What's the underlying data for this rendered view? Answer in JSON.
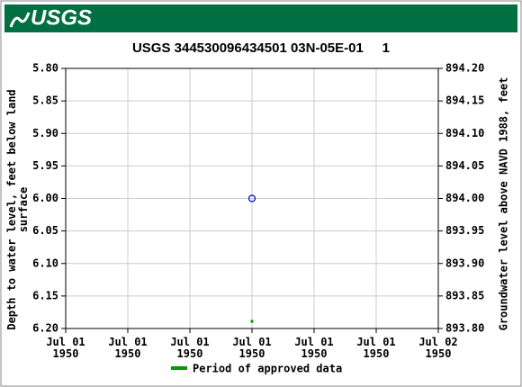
{
  "header": {
    "logo": "USGS"
  },
  "chart_data": {
    "type": "scatter",
    "title": "USGS 344530096434501 03N-05E-01     1",
    "ylabel": "Depth to water level, feet below land\nsurface",
    "y2label": "Groundwater level above NAVD 1988, feet",
    "x": [
      12
    ],
    "series": [
      {
        "color": "#0000cc",
        "values": [
          6.0
        ]
      }
    ],
    "approved": {
      "name": "Period of approved data",
      "color": "#009900",
      "x": [
        12
      ]
    },
    "xlim": [
      0,
      24
    ],
    "xticks": [
      {
        "value": 0,
        "label": "Jul 01\n1950"
      },
      {
        "value": 4,
        "label": "Jul 01\n1950"
      },
      {
        "value": 8,
        "label": "Jul 01\n1950"
      },
      {
        "value": 12,
        "label": "Jul 01\n1950"
      },
      {
        "value": 16,
        "label": "Jul 01\n1950"
      },
      {
        "value": 20,
        "label": "Jul 01\n1950"
      },
      {
        "value": 24,
        "label": "Jul 02\n1950"
      }
    ],
    "ylim": [
      5.8,
      6.2
    ],
    "y_inverted": true,
    "yticks": [
      {
        "value": 5.8,
        "label": "5.80"
      },
      5.85,
      {
        "value": 5.9,
        "label": "5.90"
      },
      5.95,
      {
        "value": 6.0,
        "label": "6.00"
      },
      6.05,
      {
        "value": 6.1,
        "label": "6.10"
      },
      6.15,
      {
        "value": 6.2,
        "label": "6.20"
      }
    ],
    "y2lim": [
      894.2,
      893.8
    ],
    "y2ticks": [
      {
        "value": 894.2,
        "label": "894.20"
      },
      894.15,
      {
        "value": 894.1,
        "label": "894.10"
      },
      894.05,
      {
        "value": 894.0,
        "label": "894.00"
      },
      893.95,
      {
        "value": 893.9,
        "label": "893.90"
      },
      893.85,
      {
        "value": 893.8,
        "label": "893.80"
      }
    ],
    "grid": true
  }
}
